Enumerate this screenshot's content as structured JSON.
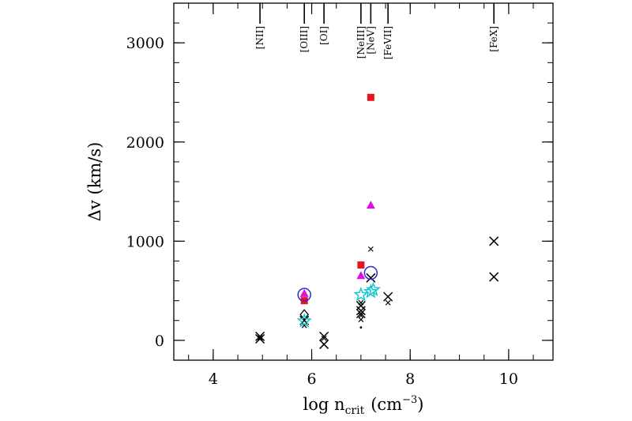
{
  "chart_data": {
    "type": "scatter",
    "title": "",
    "xlabel": {
      "main": "log n",
      "sub": "crit",
      "unit": "(cm",
      "sup": "−3",
      "close": ")"
    },
    "ylabel": "Δv (km/s)",
    "xlim": [
      3.2,
      10.9
    ],
    "ylim": [
      -200,
      3400
    ],
    "x_ticks": [
      4,
      6,
      8,
      10
    ],
    "y_ticks": [
      0,
      1000,
      2000,
      3000
    ],
    "x_minor_step": 0.5,
    "y_minor_step": 200,
    "grid": false,
    "legend": "none",
    "line_markers": [
      {
        "label": "[NII]",
        "x": 4.95
      },
      {
        "label": "[OIII]",
        "x": 5.85
      },
      {
        "label": "[OI]",
        "x": 6.25
      },
      {
        "label": "[NeIII]",
        "x": 7.0
      },
      {
        "label": "[NeV]",
        "x": 7.2
      },
      {
        "label": "[FeVII]",
        "x": 7.55
      },
      {
        "label": "[FeX]",
        "x": 9.7
      }
    ],
    "series": [
      {
        "marker": "x-large",
        "color": "#000000",
        "points": [
          [
            4.95,
            40
          ],
          [
            4.95,
            15
          ],
          [
            5.85,
            200
          ],
          [
            6.25,
            40
          ],
          [
            6.25,
            -40
          ],
          [
            7.0,
            350
          ],
          [
            7.0,
            300
          ],
          [
            7.0,
            270
          ],
          [
            7.2,
            630
          ],
          [
            7.55,
            440
          ],
          [
            9.7,
            1000
          ],
          [
            9.7,
            640
          ]
        ]
      },
      {
        "marker": "x-small",
        "color": "#000000",
        "points": [
          [
            4.95,
            25
          ],
          [
            5.85,
            150
          ],
          [
            6.25,
            20
          ],
          [
            7.0,
            380
          ],
          [
            7.0,
            250
          ],
          [
            7.0,
            210
          ],
          [
            7.2,
            920
          ],
          [
            7.55,
            380
          ]
        ]
      },
      {
        "marker": "dot",
        "color": "#000000",
        "points": [
          [
            7.0,
            130
          ]
        ]
      },
      {
        "marker": "square",
        "color": "#e8141e",
        "points": [
          [
            5.85,
            400
          ],
          [
            7.0,
            760
          ],
          [
            7.2,
            2450
          ]
        ]
      },
      {
        "marker": "triangle",
        "color": "#e010e0",
        "points": [
          [
            7.2,
            1360
          ],
          [
            7.0,
            650
          ],
          [
            5.85,
            470
          ]
        ]
      },
      {
        "marker": "circle",
        "color": "#2a2ad8",
        "points": [
          [
            5.85,
            460
          ],
          [
            7.2,
            680
          ]
        ]
      },
      {
        "marker": "diamond",
        "color": "#000000",
        "points": [
          [
            5.85,
            260
          ]
        ]
      },
      {
        "marker": "star",
        "color": "#12c9d0",
        "points": [
          [
            5.85,
            195
          ],
          [
            7.0,
            460
          ],
          [
            7.2,
            490
          ],
          [
            7.25,
            510
          ]
        ]
      }
    ]
  }
}
